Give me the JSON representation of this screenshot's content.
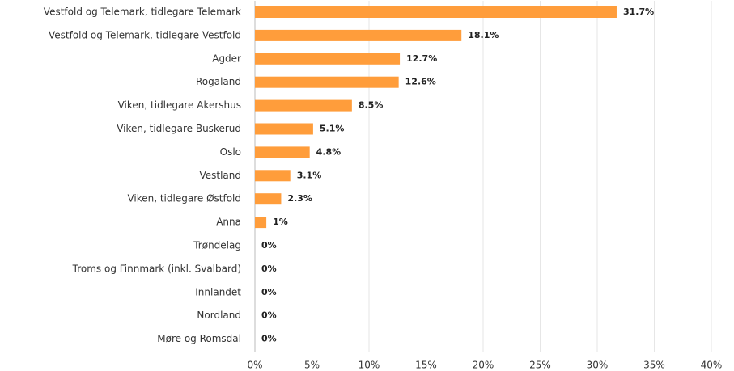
{
  "chart_data": {
    "type": "bar",
    "orientation": "horizontal",
    "categories": [
      "Vestfold og Telemark, tidlegare Telemark",
      "Vestfold og Telemark, tidlegare Vestfold",
      "Agder",
      "Rogaland",
      "Viken, tidlegare Akershus",
      "Viken, tidlegare Buskerud",
      "Oslo",
      "Vestland",
      "Viken, tidlegare Østfold",
      "Anna",
      "Trøndelag",
      "Troms og Finnmark (inkl. Svalbard)",
      "Innlandet",
      "Nordland",
      "Møre og Romsdal"
    ],
    "values": [
      31.7,
      18.1,
      12.7,
      12.6,
      8.5,
      5.1,
      4.8,
      3.1,
      2.3,
      1,
      0,
      0,
      0,
      0,
      0
    ],
    "value_labels": [
      "31.7%",
      "18.1%",
      "12.7%",
      "12.6%",
      "8.5%",
      "5.1%",
      "4.8%",
      "3.1%",
      "2.3%",
      "1%",
      "0%",
      "0%",
      "0%",
      "0%",
      "0%"
    ],
    "color": "#ff9d3b",
    "xlim": [
      0,
      40
    ],
    "xticks": [
      {
        "value": 0,
        "label": "0%"
      },
      {
        "value": 5,
        "label": "5%"
      },
      {
        "value": 10,
        "label": "10%"
      },
      {
        "value": 15,
        "label": "15%"
      },
      {
        "value": 20,
        "label": "20%"
      },
      {
        "value": 25,
        "label": "25%"
      },
      {
        "value": 30,
        "label": "30%"
      },
      {
        "value": 35,
        "label": "35%"
      },
      {
        "value": 40,
        "label": "40%"
      }
    ],
    "grid": true
  }
}
